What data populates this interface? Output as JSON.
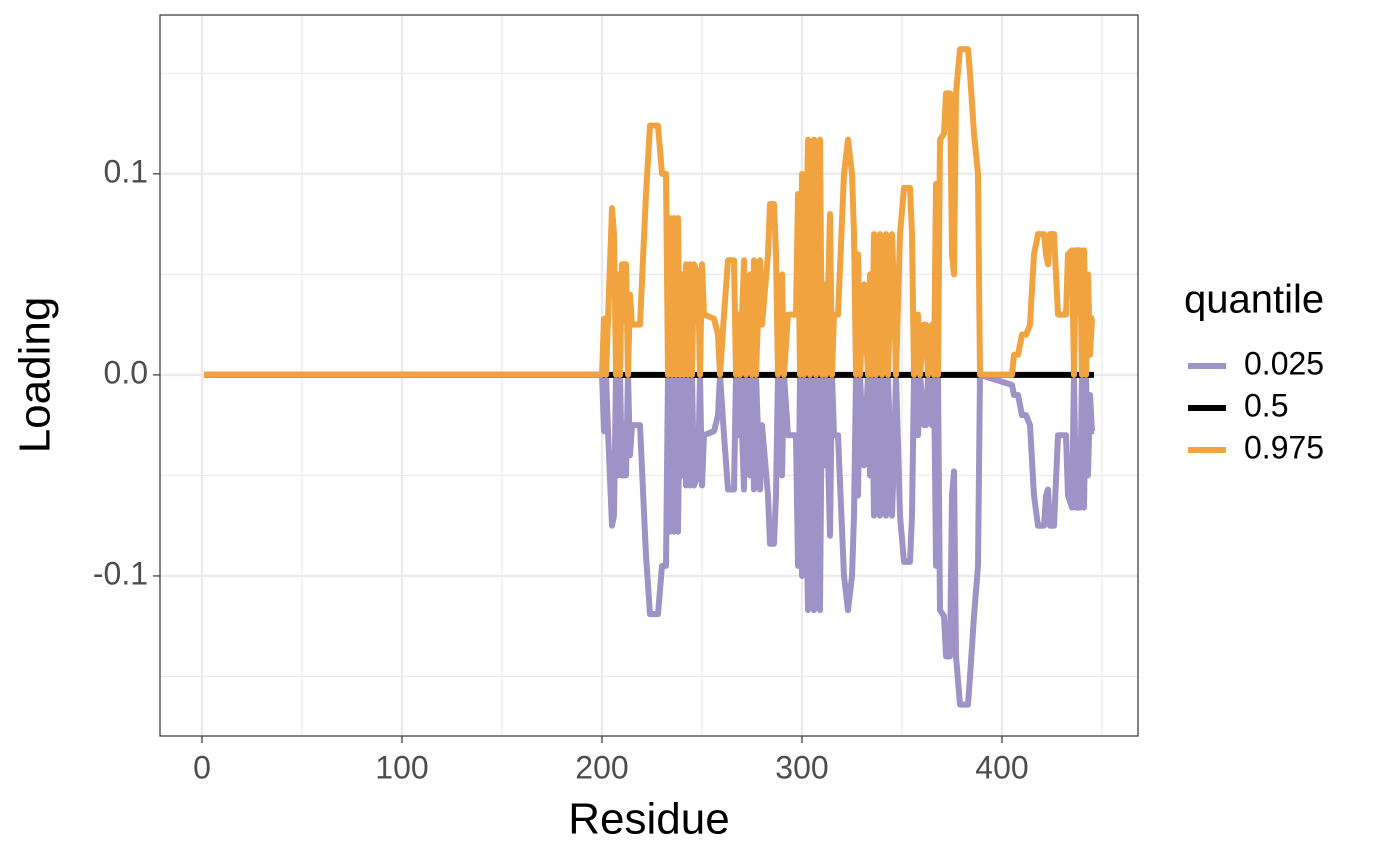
{
  "chart_data": {
    "type": "line",
    "x_label": "Residue",
    "y_label": "Loading",
    "legend_title": "quantile",
    "legend_position": "right",
    "grid": true,
    "xlim": [
      -21,
      468
    ],
    "ylim": [
      -0.1796,
      0.179
    ],
    "xticks": [
      0,
      100,
      200,
      300,
      400
    ],
    "x_minor_ticks": [
      50,
      150,
      250,
      350,
      450
    ],
    "yticks": [
      -0.1,
      {
        "value": 0,
        "label": "0.0"
      },
      0.1
    ],
    "y_minor_ticks": [
      -0.15,
      -0.05,
      0.05,
      0.15
    ],
    "x": [
      1,
      200,
      201,
      202,
      203,
      205,
      206,
      207,
      208,
      209,
      210,
      212,
      213,
      214,
      215,
      219,
      222,
      224,
      228,
      230,
      232,
      233,
      234,
      235,
      236,
      237,
      238,
      239,
      240,
      241,
      242,
      243,
      244,
      245,
      246,
      248,
      249,
      250,
      251,
      256,
      258,
      259,
      261,
      263,
      266,
      267,
      268,
      269,
      271,
      272,
      274,
      275,
      276,
      277,
      279,
      280,
      283,
      284,
      286,
      287,
      288,
      290,
      291,
      293,
      297,
      298,
      299,
      300,
      301,
      303,
      304,
      306,
      307,
      309,
      310,
      311,
      312,
      314,
      315,
      316,
      318,
      321,
      323,
      325,
      326,
      327,
      328,
      329,
      331,
      333,
      334,
      335,
      336,
      337,
      339,
      340,
      342,
      343,
      345,
      346,
      347,
      349,
      351,
      354,
      355,
      356,
      358,
      359,
      361,
      362,
      363,
      365,
      366,
      367,
      368,
      369,
      371,
      372,
      374,
      375,
      376,
      377,
      379,
      383,
      384,
      386,
      388,
      389,
      405,
      406,
      408,
      410,
      412,
      414,
      416,
      418,
      421,
      422,
      423,
      424,
      426,
      428,
      432,
      433,
      435,
      436,
      437,
      439,
      440,
      441,
      442,
      443,
      444,
      445,
      446
    ],
    "series": [
      {
        "name": "0.025",
        "color": "#9d93c6",
        "values": [
          0,
          0,
          -0.028,
          0,
          -0.028,
          -0.075,
          -0.07,
          0,
          -0.05,
          0,
          -0.05,
          -0.05,
          0,
          -0.04,
          -0.025,
          -0.025,
          -0.09,
          -0.119,
          -0.119,
          -0.095,
          -0.095,
          0,
          -0.078,
          0,
          -0.078,
          0,
          -0.078,
          0,
          -0.05,
          0,
          -0.055,
          0,
          -0.055,
          0,
          -0.055,
          -0.05,
          0,
          -0.055,
          -0.03,
          -0.028,
          -0.02,
          0,
          -0.03,
          -0.057,
          -0.057,
          0,
          -0.03,
          0,
          -0.057,
          0,
          -0.05,
          0,
          -0.057,
          0,
          -0.057,
          -0.025,
          -0.06,
          -0.084,
          -0.084,
          -0.06,
          0,
          -0.05,
          0,
          -0.03,
          -0.03,
          -0.095,
          0,
          -0.1,
          0,
          -0.117,
          0,
          -0.117,
          0,
          -0.117,
          0,
          -0.045,
          0,
          -0.08,
          0,
          -0.03,
          -0.03,
          -0.1,
          -0.117,
          -0.1,
          -0.07,
          0,
          -0.06,
          0,
          -0.045,
          0,
          -0.05,
          0,
          -0.07,
          0,
          -0.07,
          0,
          -0.07,
          0,
          -0.07,
          -0.04,
          0,
          -0.07,
          -0.093,
          -0.093,
          -0.07,
          0,
          -0.03,
          0,
          -0.025,
          -0.025,
          0,
          -0.025,
          0,
          -0.095,
          0,
          -0.117,
          -0.12,
          -0.14,
          -0.14,
          -0.06,
          -0.048,
          -0.14,
          -0.164,
          -0.164,
          -0.15,
          -0.12,
          -0.095,
          0,
          -0.005,
          -0.01,
          -0.01,
          -0.02,
          -0.02,
          -0.025,
          -0.06,
          -0.075,
          -0.075,
          -0.06,
          -0.057,
          -0.075,
          -0.075,
          -0.03,
          -0.03,
          -0.06,
          -0.066,
          0,
          -0.066,
          -0.066,
          0,
          -0.066,
          0,
          -0.05,
          -0.01,
          -0.028,
          -0.028
        ]
      },
      {
        "name": "0.5",
        "color": "#000000",
        "values": [
          0,
          0,
          0,
          0,
          0,
          0,
          0,
          0,
          0,
          0,
          0,
          0,
          0,
          0,
          0,
          0,
          0,
          0,
          0,
          0,
          0,
          0,
          0,
          0,
          0,
          0,
          0,
          0,
          0,
          0,
          0,
          0,
          0,
          0,
          0,
          0,
          0,
          0,
          0,
          0,
          0,
          0,
          0,
          0,
          0,
          0,
          0,
          0,
          0,
          0,
          0,
          0,
          0,
          0,
          0,
          0,
          0,
          0,
          0,
          0,
          0,
          0,
          0,
          0,
          0,
          0,
          0,
          0,
          0,
          0,
          0,
          0,
          0,
          0,
          0,
          0,
          0,
          0,
          0,
          0,
          0,
          0,
          0,
          0,
          0,
          0,
          0,
          0,
          0,
          0,
          0,
          0,
          0,
          0,
          0,
          0,
          0,
          0,
          0,
          0,
          0,
          0,
          0,
          0,
          0,
          0,
          0,
          0,
          0,
          0,
          0,
          0,
          0,
          0,
          0,
          0,
          0,
          0,
          0,
          0,
          0,
          0,
          0,
          0,
          0,
          0,
          0,
          0,
          0,
          0,
          0,
          0,
          0,
          0,
          0,
          0,
          0,
          0,
          0,
          0,
          0,
          0,
          0,
          0,
          0,
          0,
          0,
          0,
          0,
          0,
          0,
          0,
          0,
          0,
          0
        ]
      },
      {
        "name": "0.975",
        "color": "#f0a33f",
        "values": [
          0,
          0,
          0.028,
          0,
          0.028,
          0.083,
          0.07,
          0,
          0.05,
          0,
          0.055,
          0.055,
          0,
          0.04,
          0.025,
          0.025,
          0.09,
          0.124,
          0.124,
          0.1,
          0.1,
          0,
          0.078,
          0,
          0.078,
          0,
          0.078,
          0,
          0.05,
          0,
          0.055,
          0,
          0.055,
          0,
          0.055,
          0.05,
          0,
          0.055,
          0.03,
          0.028,
          0.02,
          0,
          0.03,
          0.057,
          0.057,
          0,
          0.03,
          0,
          0.057,
          0,
          0.05,
          0,
          0.057,
          0,
          0.057,
          0.025,
          0.06,
          0.085,
          0.085,
          0.06,
          0,
          0.05,
          0,
          0.03,
          0.03,
          0.09,
          0,
          0.1,
          0,
          0.117,
          0,
          0.117,
          0,
          0.117,
          0,
          0.045,
          0,
          0.08,
          0,
          0.03,
          0.03,
          0.1,
          0.117,
          0.1,
          0.07,
          0,
          0.06,
          0,
          0.045,
          0,
          0.05,
          0,
          0.07,
          0,
          0.07,
          0,
          0.07,
          0,
          0.07,
          0.04,
          0,
          0.07,
          0.093,
          0.093,
          0.07,
          0,
          0.03,
          0,
          0.025,
          0.025,
          0,
          0.025,
          0,
          0.095,
          0,
          0.117,
          0.12,
          0.14,
          0.14,
          0.06,
          0.05,
          0.14,
          0.162,
          0.162,
          0.15,
          0.12,
          0.1,
          0,
          0,
          0.01,
          0.01,
          0.02,
          0.02,
          0.025,
          0.06,
          0.07,
          0.07,
          0.06,
          0.055,
          0.07,
          0.07,
          0.03,
          0.03,
          0.06,
          0.062,
          0,
          0.062,
          0.062,
          0,
          0.062,
          0,
          0.05,
          0.01,
          0.028,
          0.028
        ]
      }
    ]
  }
}
